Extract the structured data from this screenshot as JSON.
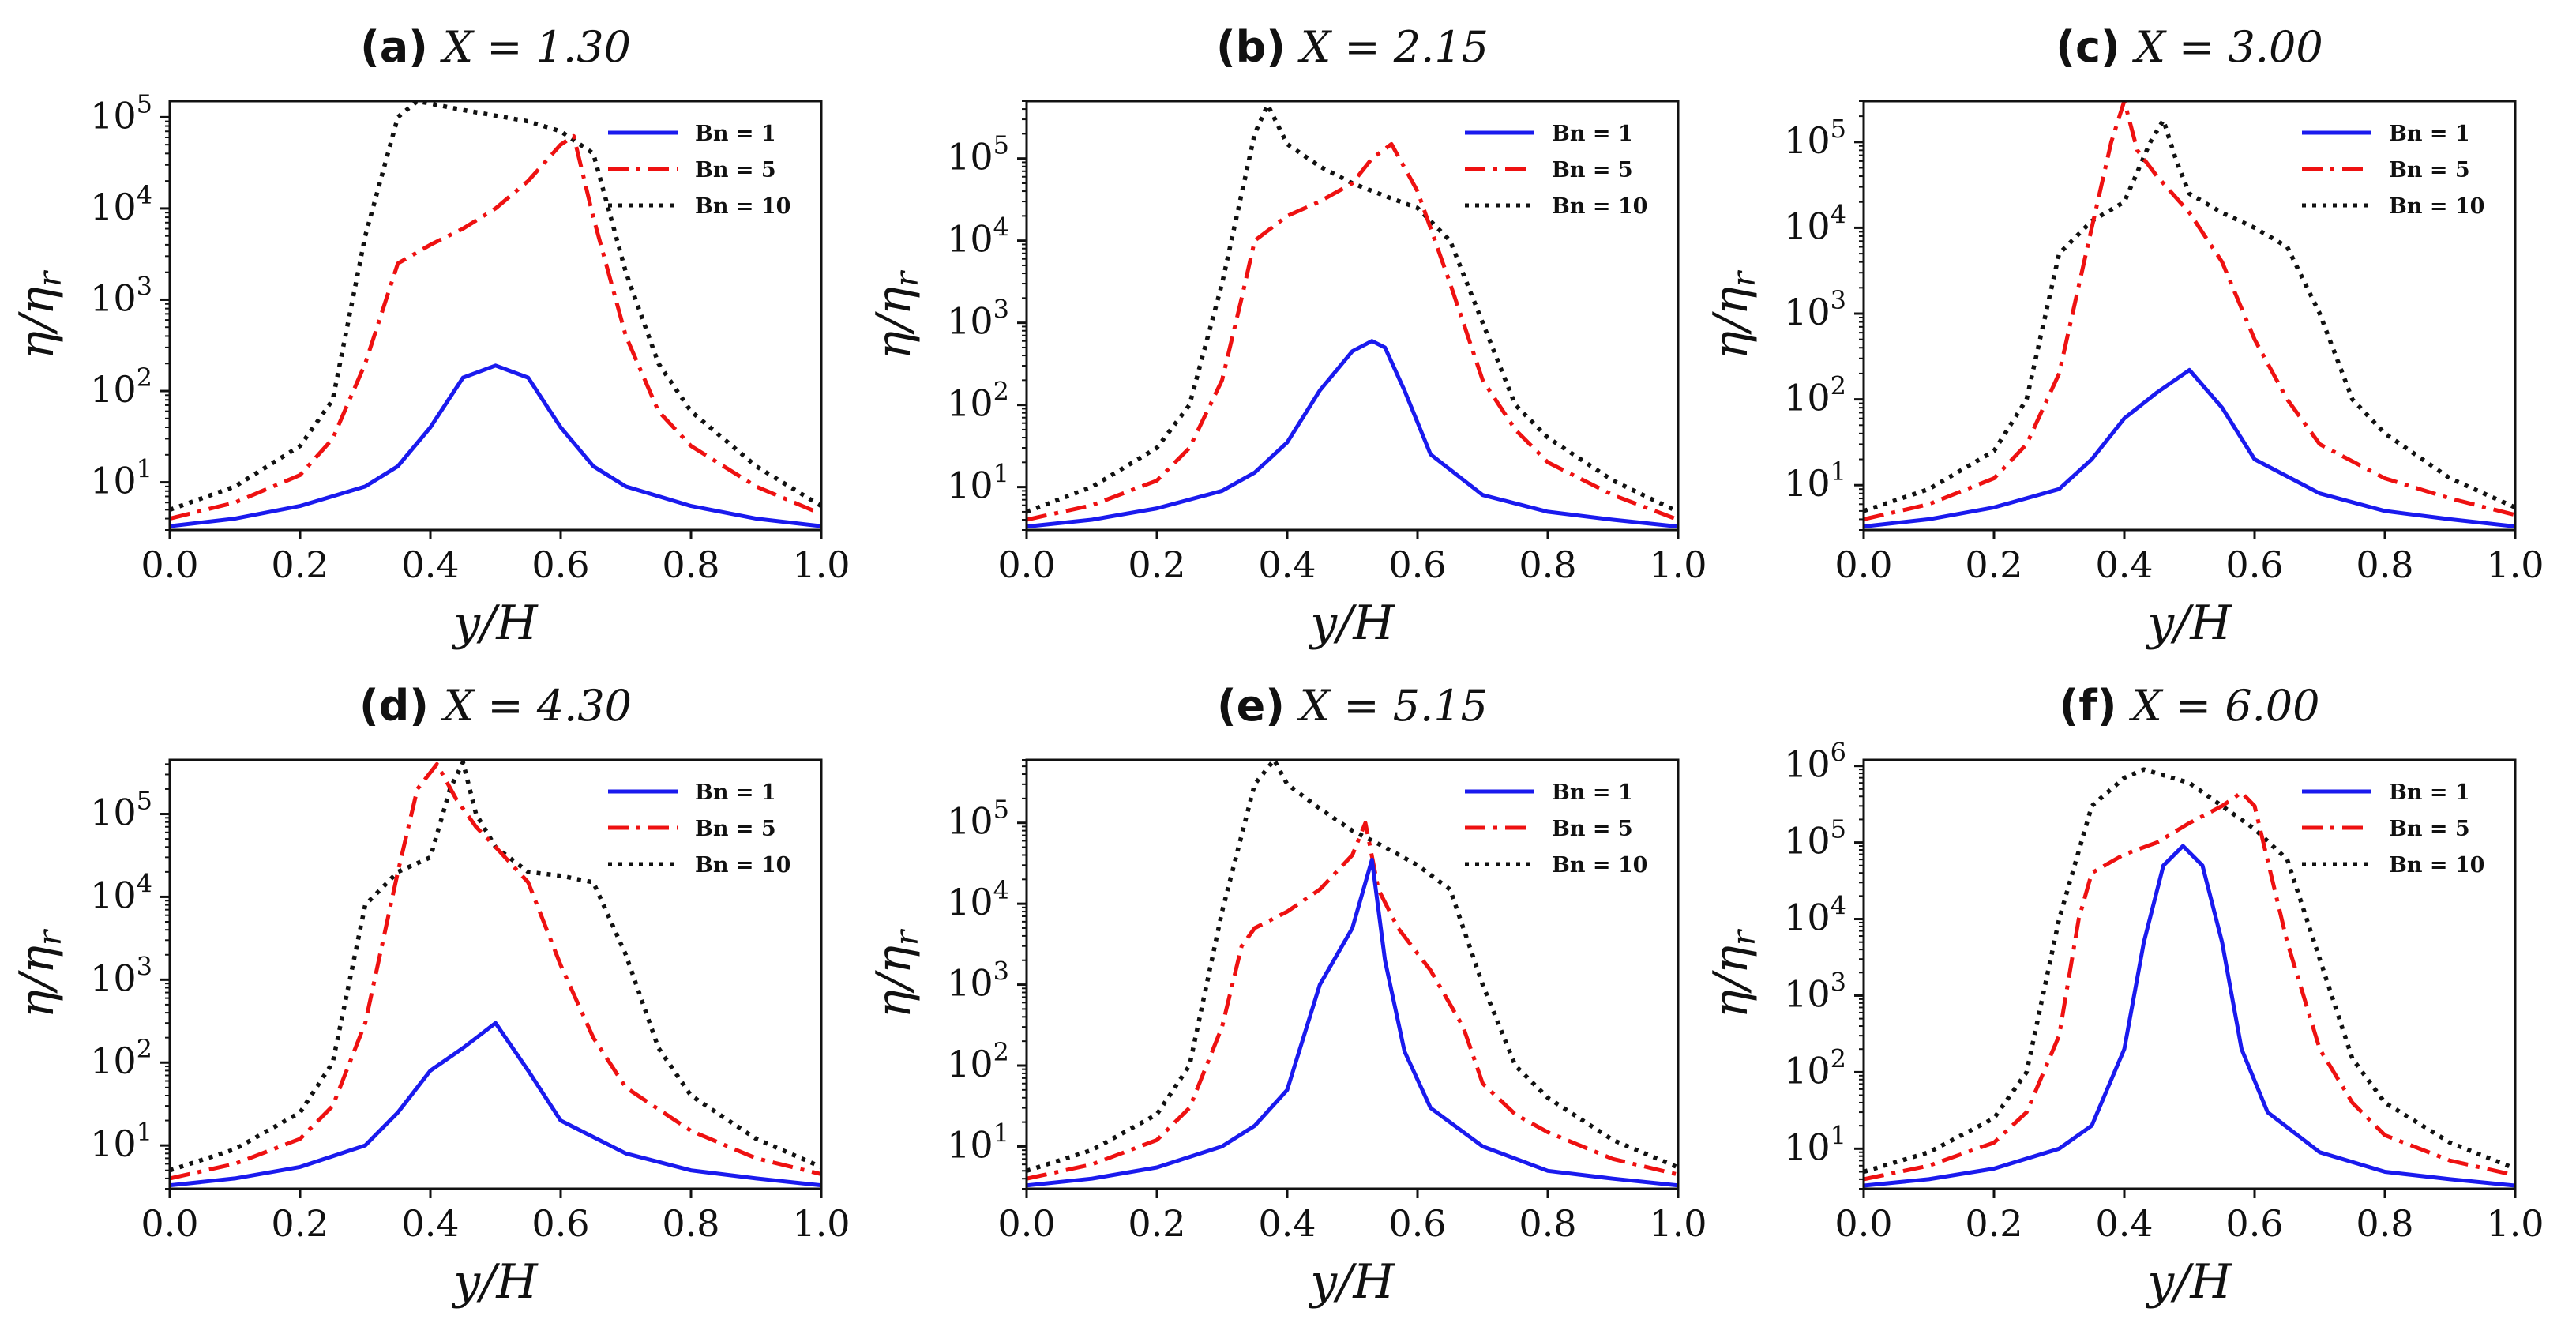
{
  "colors": {
    "bn1": "#1a1aee",
    "bn5": "#ee1111",
    "bn10": "#111111"
  },
  "chart_data": [
    {
      "type": "line",
      "panel": "(a)",
      "x_label": "X = 1.30",
      "xlabel": "y/H",
      "ylabel": "η/η_r",
      "yscale": "log",
      "xlim": [
        0,
        1
      ],
      "ylim": [
        3,
        150000
      ],
      "xticks": [
        "0.0",
        "0.2",
        "0.4",
        "0.6",
        "0.8",
        "1.0"
      ],
      "yticks": [
        {
          "exp": "1",
          "value": 10
        },
        {
          "exp": "2",
          "value": 100
        },
        {
          "exp": "3",
          "value": 1000
        },
        {
          "exp": "4",
          "value": 10000
        },
        {
          "exp": "5",
          "value": 100000
        }
      ],
      "series": [
        {
          "name": "Bn = 1",
          "style": "solid",
          "x": [
            0,
            0.1,
            0.2,
            0.3,
            0.35,
            0.4,
            0.45,
            0.5,
            0.55,
            0.6,
            0.65,
            0.7,
            0.8,
            0.9,
            1.0
          ],
          "y": [
            3.3,
            4,
            5.5,
            9,
            15,
            40,
            140,
            190,
            140,
            40,
            15,
            9,
            5.5,
            4,
            3.3
          ]
        },
        {
          "name": "Bn = 5",
          "style": "dashdot",
          "x": [
            0,
            0.1,
            0.2,
            0.25,
            0.3,
            0.35,
            0.4,
            0.45,
            0.5,
            0.55,
            0.6,
            0.62,
            0.65,
            0.7,
            0.75,
            0.8,
            0.9,
            1.0
          ],
          "y": [
            4,
            6,
            12,
            30,
            200,
            2500,
            4000,
            6000,
            10000,
            20000,
            50000,
            62000,
            8000,
            400,
            60,
            25,
            9,
            4.5
          ]
        },
        {
          "name": "Bn = 10",
          "style": "dotted",
          "x": [
            0,
            0.1,
            0.2,
            0.25,
            0.3,
            0.35,
            0.38,
            0.45,
            0.55,
            0.6,
            0.65,
            0.7,
            0.75,
            0.8,
            0.9,
            1.0
          ],
          "y": [
            5,
            9,
            25,
            80,
            5000,
            100000,
            150000,
            120000,
            90000,
            70000,
            40000,
            2000,
            200,
            60,
            15,
            5.5
          ]
        }
      ]
    },
    {
      "type": "line",
      "panel": "(b)",
      "x_label": "X = 2.15",
      "xlabel": "y/H",
      "ylabel": "η/η_r",
      "yscale": "log",
      "xlim": [
        0,
        1
      ],
      "ylim": [
        3,
        500000
      ],
      "xticks": [
        "0.0",
        "0.2",
        "0.4",
        "0.6",
        "0.8",
        "1.0"
      ],
      "yticks": [
        {
          "exp": "1",
          "value": 10
        },
        {
          "exp": "2",
          "value": 100
        },
        {
          "exp": "3",
          "value": 1000
        },
        {
          "exp": "4",
          "value": 10000
        },
        {
          "exp": "5",
          "value": 100000
        }
      ],
      "series": [
        {
          "name": "Bn = 1",
          "style": "solid",
          "x": [
            0,
            0.1,
            0.2,
            0.3,
            0.35,
            0.4,
            0.45,
            0.5,
            0.53,
            0.55,
            0.58,
            0.62,
            0.7,
            0.8,
            0.9,
            1.0
          ],
          "y": [
            3.3,
            4,
            5.5,
            9,
            15,
            35,
            150,
            450,
            600,
            500,
            150,
            25,
            8,
            5,
            4,
            3.3
          ]
        },
        {
          "name": "Bn = 5",
          "style": "dashdot",
          "x": [
            0,
            0.1,
            0.2,
            0.25,
            0.3,
            0.33,
            0.35,
            0.4,
            0.45,
            0.5,
            0.53,
            0.56,
            0.6,
            0.65,
            0.7,
            0.75,
            0.8,
            0.9,
            1.0
          ],
          "y": [
            4,
            6,
            12,
            30,
            200,
            2000,
            10000,
            20000,
            30000,
            50000,
            100000,
            150000,
            40000,
            3000,
            200,
            50,
            20,
            8,
            4
          ]
        },
        {
          "name": "Bn = 10",
          "style": "dotted",
          "x": [
            0,
            0.1,
            0.2,
            0.25,
            0.3,
            0.35,
            0.37,
            0.4,
            0.45,
            0.5,
            0.55,
            0.6,
            0.65,
            0.7,
            0.75,
            0.8,
            0.9,
            1.0
          ],
          "y": [
            5,
            10,
            30,
            100,
            3000,
            200000,
            450000,
            150000,
            80000,
            50000,
            35000,
            25000,
            10000,
            1000,
            100,
            40,
            12,
            5
          ]
        }
      ]
    },
    {
      "type": "line",
      "panel": "(c)",
      "x_label": "X = 3.00",
      "xlabel": "y/H",
      "ylabel": "η/η_r",
      "yscale": "log",
      "xlim": [
        0,
        1
      ],
      "ylim": [
        3,
        300000
      ],
      "xticks": [
        "0.0",
        "0.2",
        "0.4",
        "0.6",
        "0.8",
        "1.0"
      ],
      "yticks": [
        {
          "exp": "1",
          "value": 10
        },
        {
          "exp": "2",
          "value": 100
        },
        {
          "exp": "3",
          "value": 1000
        },
        {
          "exp": "4",
          "value": 10000
        },
        {
          "exp": "5",
          "value": 100000
        }
      ],
      "series": [
        {
          "name": "Bn = 1",
          "style": "solid",
          "x": [
            0,
            0.1,
            0.2,
            0.3,
            0.35,
            0.4,
            0.45,
            0.5,
            0.55,
            0.6,
            0.7,
            0.8,
            0.9,
            1.0
          ],
          "y": [
            3.3,
            4,
            5.5,
            9,
            20,
            60,
            120,
            220,
            80,
            20,
            8,
            5,
            4,
            3.3
          ]
        },
        {
          "name": "Bn = 5",
          "style": "dashdot",
          "x": [
            0,
            0.1,
            0.2,
            0.25,
            0.3,
            0.35,
            0.38,
            0.4,
            0.42,
            0.45,
            0.5,
            0.55,
            0.6,
            0.65,
            0.7,
            0.8,
            0.9,
            1.0
          ],
          "y": [
            4,
            6,
            12,
            30,
            200,
            10000,
            100000,
            300000,
            80000,
            40000,
            15000,
            4000,
            500,
            100,
            30,
            12,
            7,
            4.5
          ]
        },
        {
          "name": "Bn = 10",
          "style": "dotted",
          "x": [
            0,
            0.1,
            0.2,
            0.25,
            0.3,
            0.35,
            0.4,
            0.44,
            0.46,
            0.48,
            0.5,
            0.55,
            0.6,
            0.65,
            0.7,
            0.75,
            0.8,
            0.9,
            1.0
          ],
          "y": [
            5,
            9,
            25,
            100,
            5000,
            12000,
            20000,
            100000,
            180000,
            60000,
            25000,
            15000,
            10000,
            6000,
            1000,
            100,
            40,
            12,
            5.5
          ]
        }
      ]
    },
    {
      "type": "line",
      "panel": "(d)",
      "x_label": "X = 4.30",
      "xlabel": "y/H",
      "ylabel": "η/η_r",
      "yscale": "log",
      "xlim": [
        0,
        1
      ],
      "ylim": [
        3,
        450000
      ],
      "xticks": [
        "0.0",
        "0.2",
        "0.4",
        "0.6",
        "0.8",
        "1.0"
      ],
      "yticks": [
        {
          "exp": "1",
          "value": 10
        },
        {
          "exp": "2",
          "value": 100
        },
        {
          "exp": "3",
          "value": 1000
        },
        {
          "exp": "4",
          "value": 10000
        },
        {
          "exp": "5",
          "value": 100000
        }
      ],
      "series": [
        {
          "name": "Bn = 1",
          "style": "solid",
          "x": [
            0,
            0.1,
            0.2,
            0.3,
            0.35,
            0.4,
            0.45,
            0.5,
            0.55,
            0.6,
            0.7,
            0.8,
            0.9,
            1.0
          ],
          "y": [
            3.3,
            4,
            5.5,
            10,
            25,
            80,
            150,
            300,
            80,
            20,
            8,
            5,
            4,
            3.3
          ]
        },
        {
          "name": "Bn = 5",
          "style": "dashdot",
          "x": [
            0,
            0.1,
            0.2,
            0.25,
            0.3,
            0.35,
            0.38,
            0.41,
            0.44,
            0.47,
            0.5,
            0.55,
            0.6,
            0.65,
            0.7,
            0.8,
            0.9,
            1.0
          ],
          "y": [
            4,
            6,
            12,
            30,
            300,
            20000,
            200000,
            400000,
            150000,
            70000,
            40000,
            15000,
            1500,
            200,
            50,
            15,
            7,
            4.5
          ]
        },
        {
          "name": "Bn = 10",
          "style": "dotted",
          "x": [
            0,
            0.1,
            0.2,
            0.25,
            0.3,
            0.35,
            0.4,
            0.43,
            0.45,
            0.47,
            0.5,
            0.55,
            0.6,
            0.65,
            0.7,
            0.75,
            0.8,
            0.9,
            1.0
          ],
          "y": [
            5,
            9,
            25,
            100,
            8000,
            20000,
            30000,
            200000,
            420000,
            100000,
            40000,
            20000,
            18000,
            15000,
            2000,
            150,
            40,
            12,
            5.5
          ]
        }
      ]
    },
    {
      "type": "line",
      "panel": "(e)",
      "x_label": "X = 5.15",
      "xlabel": "y/H",
      "ylabel": "η/η_r",
      "yscale": "log",
      "xlim": [
        0,
        1
      ],
      "ylim": [
        3,
        600000
      ],
      "xticks": [
        "0.0",
        "0.2",
        "0.4",
        "0.6",
        "0.8",
        "1.0"
      ],
      "yticks": [
        {
          "exp": "1",
          "value": 10
        },
        {
          "exp": "2",
          "value": 100
        },
        {
          "exp": "3",
          "value": 1000
        },
        {
          "exp": "4",
          "value": 10000
        },
        {
          "exp": "5",
          "value": 100000
        }
      ],
      "series": [
        {
          "name": "Bn = 1",
          "style": "solid",
          "x": [
            0,
            0.1,
            0.2,
            0.3,
            0.35,
            0.4,
            0.45,
            0.5,
            0.53,
            0.55,
            0.58,
            0.62,
            0.7,
            0.8,
            0.9,
            1.0
          ],
          "y": [
            3.3,
            4,
            5.5,
            10,
            18,
            50,
            1000,
            5000,
            35000,
            2000,
            150,
            30,
            10,
            5,
            4,
            3.3
          ]
        },
        {
          "name": "Bn = 5",
          "style": "dashdot",
          "x": [
            0,
            0.1,
            0.2,
            0.25,
            0.3,
            0.33,
            0.35,
            0.4,
            0.45,
            0.5,
            0.52,
            0.54,
            0.57,
            0.62,
            0.67,
            0.7,
            0.75,
            0.8,
            0.9,
            1.0
          ],
          "y": [
            4,
            6,
            12,
            30,
            300,
            3000,
            5000,
            8000,
            15000,
            40000,
            100000,
            15000,
            5000,
            1500,
            300,
            60,
            25,
            15,
            7,
            4.5
          ]
        },
        {
          "name": "Bn = 10",
          "style": "dotted",
          "x": [
            0,
            0.1,
            0.2,
            0.25,
            0.3,
            0.35,
            0.38,
            0.4,
            0.45,
            0.5,
            0.55,
            0.6,
            0.65,
            0.7,
            0.75,
            0.8,
            0.9,
            1.0
          ],
          "y": [
            5,
            9,
            25,
            100,
            8000,
            300000,
            600000,
            300000,
            150000,
            80000,
            50000,
            30000,
            15000,
            1000,
            100,
            40,
            12,
            5.5
          ]
        }
      ]
    },
    {
      "type": "line",
      "panel": "(f)",
      "x_label": "X = 6.00",
      "xlabel": "y/H",
      "ylabel": "η/η_r",
      "yscale": "log",
      "xlim": [
        0,
        1
      ],
      "ylim": [
        3,
        1200000
      ],
      "xticks": [
        "0.0",
        "0.2",
        "0.4",
        "0.6",
        "0.8",
        "1.0"
      ],
      "yticks": [
        {
          "exp": "1",
          "value": 10
        },
        {
          "exp": "2",
          "value": 100
        },
        {
          "exp": "3",
          "value": 1000
        },
        {
          "exp": "4",
          "value": 10000
        },
        {
          "exp": "5",
          "value": 100000
        },
        {
          "exp": "6",
          "value": 1000000
        }
      ],
      "series": [
        {
          "name": "Bn = 1",
          "style": "solid",
          "x": [
            0,
            0.1,
            0.2,
            0.3,
            0.35,
            0.4,
            0.43,
            0.46,
            0.49,
            0.52,
            0.55,
            0.58,
            0.62,
            0.7,
            0.8,
            0.9,
            1.0
          ],
          "y": [
            3.3,
            4,
            5.5,
            10,
            20,
            200,
            5000,
            50000,
            90000,
            50000,
            5000,
            200,
            30,
            9,
            5,
            4,
            3.3
          ]
        },
        {
          "name": "Bn = 5",
          "style": "dashdot",
          "x": [
            0,
            0.1,
            0.2,
            0.25,
            0.3,
            0.33,
            0.35,
            0.4,
            0.45,
            0.5,
            0.55,
            0.58,
            0.6,
            0.65,
            0.7,
            0.75,
            0.8,
            0.9,
            1.0
          ],
          "y": [
            4,
            6,
            12,
            30,
            300,
            10000,
            40000,
            70000,
            100000,
            180000,
            300000,
            450000,
            300000,
            5000,
            200,
            40,
            15,
            7,
            4.5
          ]
        },
        {
          "name": "Bn = 10",
          "style": "dotted",
          "x": [
            0,
            0.1,
            0.2,
            0.25,
            0.3,
            0.35,
            0.4,
            0.43,
            0.5,
            0.55,
            0.6,
            0.65,
            0.7,
            0.75,
            0.8,
            0.9,
            1.0
          ],
          "y": [
            5,
            9,
            25,
            100,
            10000,
            300000,
            700000,
            900000,
            600000,
            300000,
            150000,
            60000,
            3000,
            150,
            40,
            12,
            5.5
          ]
        }
      ]
    }
  ]
}
